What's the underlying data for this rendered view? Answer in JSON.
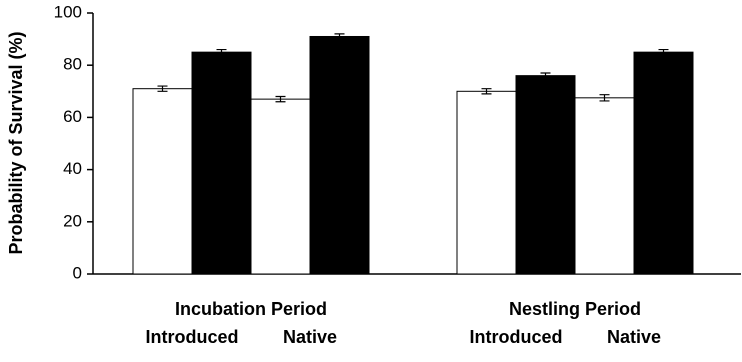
{
  "chart_data": {
    "type": "bar",
    "y_label": "Probability of Survival (%)",
    "groups": [
      "Incubation Period",
      "Nestling Period"
    ],
    "categories": [
      "Introduced",
      "Native",
      "Introduced",
      "Native"
    ],
    "series": [
      {
        "color": "#ffffff",
        "values": [
          71,
          67,
          70,
          67.5
        ],
        "errors": [
          1,
          1,
          1,
          1.2
        ]
      },
      {
        "color": "#000000",
        "values": [
          85,
          91,
          76,
          85
        ],
        "errors": [
          1,
          1,
          1,
          1
        ]
      }
    ],
    "ylim": [
      0,
      100
    ],
    "yticks": [
      0,
      20,
      40,
      60,
      80,
      100
    ],
    "grid": false
  }
}
